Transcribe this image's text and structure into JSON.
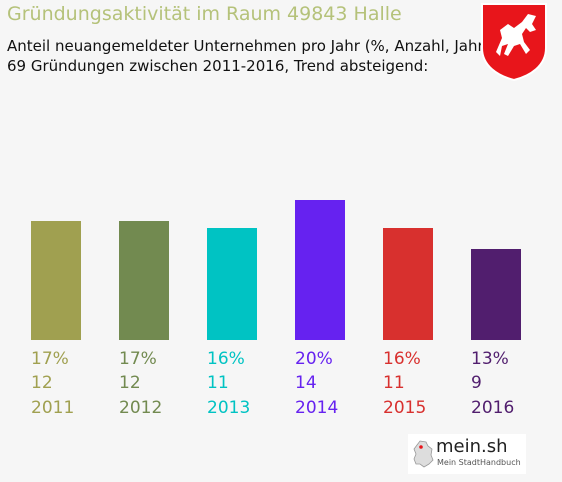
{
  "header": {
    "title": "Gründungsaktivität im Raum 49843 Halle",
    "subtitle_line1": "Anteil neuangemeldeter Unternehmen pro Jahr (%, Anzahl, Jahr)",
    "subtitle_line2": "69 Gründungen zwischen 2011-2016, Trend absteigend:"
  },
  "footer": {
    "logo_text": "mein.sh",
    "logo_sub": "Mein StadtHandbuch"
  },
  "colors": {
    "title": "#b5c27a",
    "crest_red": "#e8151b",
    "crest_white": "#ffffff"
  },
  "chart_data": {
    "type": "bar",
    "categories": [
      "2011",
      "2012",
      "2013",
      "2014",
      "2015",
      "2016"
    ],
    "values": [
      17,
      17,
      16,
      20,
      16,
      13
    ],
    "counts": [
      12,
      12,
      11,
      14,
      11,
      9
    ],
    "percent_labels": [
      "17%",
      "17%",
      "16%",
      "20%",
      "16%",
      "13%"
    ],
    "count_labels": [
      "12",
      "12",
      "11",
      "14",
      "11",
      "9"
    ],
    "colors": [
      "#a0a050",
      "#728a50",
      "#00c3c3",
      "#6622f0",
      "#d8302e",
      "#511e6e"
    ],
    "ylim": [
      0,
      20
    ],
    "grid": false,
    "title": "",
    "xlabel": "",
    "ylabel": ""
  }
}
